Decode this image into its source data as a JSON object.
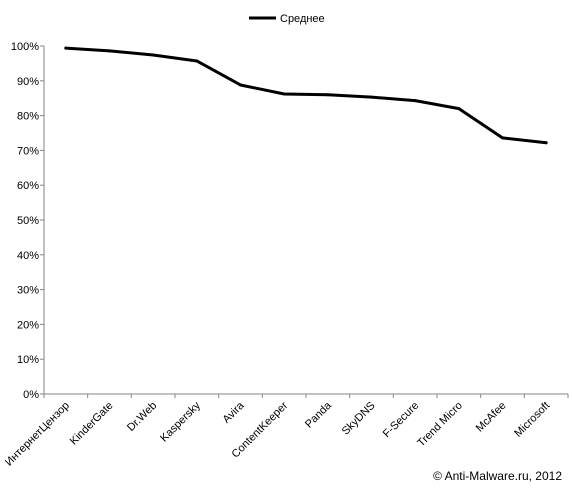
{
  "chart_data": {
    "type": "line",
    "categories": [
      "ИнтернетЦензор",
      "KinderGate",
      "Dr.Web",
      "Kaspersky",
      "Avira",
      "ContentKeeper",
      "Panda",
      "SkyDNS",
      "F-Secure",
      "Trend Micro",
      "McAfee",
      "Microsoft"
    ],
    "series": [
      {
        "name": "Среднее",
        "color": "#000000",
        "values": [
          99.4,
          98.6,
          97.4,
          95.7,
          88.8,
          86.2,
          86.0,
          85.3,
          84.3,
          82.0,
          73.6,
          72.2
        ]
      }
    ],
    "yticks": [
      "0%",
      "10%",
      "20%",
      "30%",
      "40%",
      "50%",
      "60%",
      "70%",
      "80%",
      "90%",
      "100%"
    ],
    "ylim": [
      0,
      100
    ],
    "grid": false,
    "legend": "top-center"
  },
  "footer": {
    "copyright": "© Anti-Malware.ru,  2012"
  }
}
